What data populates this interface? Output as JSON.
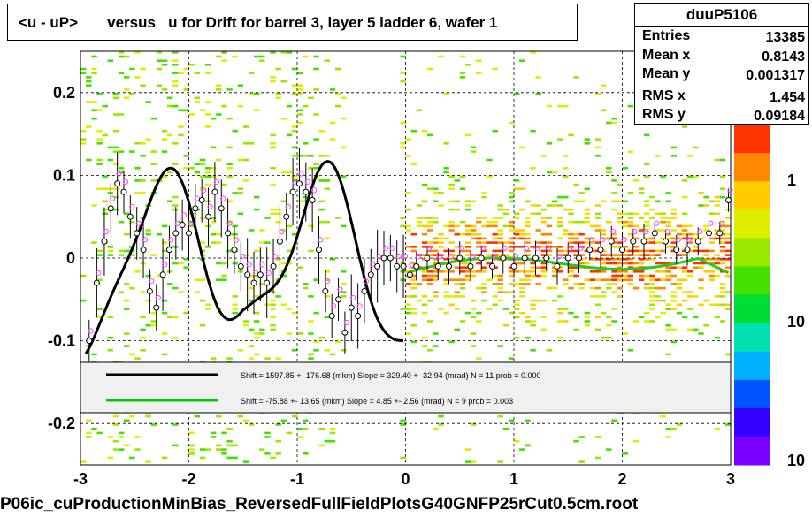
{
  "title": "<u - uP>       versus   u for Drift for barrel 3, layer 5 ladder 6, wafer 1",
  "stats": {
    "name": "duuP5106",
    "rows": [
      {
        "label": "Entries",
        "value": "13385"
      },
      {
        "label": "Mean x",
        "value": "0.8143"
      },
      {
        "label": "Mean y",
        "value": "0.001317"
      },
      {
        "label": "RMS x",
        "value": "1.454"
      },
      {
        "label": "RMS y",
        "value": "0.09184"
      }
    ]
  },
  "footer": "P06ic_cuProductionMinBias_ReversedFullFieldPlotsG40GNFP25rCut0.5cm.root",
  "legend": [
    {
      "text": "Shift =   1597.85 +- 176.68 (mkm) Slope =   329.40 +- 32.94 (mrad)  N = 11 prob = 0.000",
      "color": "#000000"
    },
    {
      "text": "Shift =   -75.88 +- 13.65 (mkm) Slope =     4.85 +- 2.56 (mrad)  N = 9 prob = 0.003",
      "color": "#00cc00"
    }
  ],
  "colors": {
    "fit1": "#000000",
    "fit2": "#22cc22",
    "palette": [
      "#7a00ff",
      "#3300ff",
      "#0055ff",
      "#00b0ff",
      "#00e0b0",
      "#00dd33",
      "#44e000",
      "#99e800",
      "#ddee00",
      "#ffcc00",
      "#ff8800",
      "#ff3300"
    ]
  },
  "chart_data": {
    "type": "heatmap",
    "xlabel": "",
    "ylabel": "",
    "xlim": [
      -3,
      3
    ],
    "ylim": [
      -0.25,
      0.25
    ],
    "xticks": [
      "-3",
      "-2",
      "-1",
      "0",
      "1",
      "2",
      "3"
    ],
    "yticks": [
      "-0.2",
      "-0.1",
      "0",
      "0.1",
      "0.2"
    ],
    "grid": true,
    "colorbar_ticks": [
      "1",
      "10",
      "10"
    ],
    "series": [
      {
        "name": "profile",
        "x": [
          -2.92,
          -2.85,
          -2.78,
          -2.72,
          -2.66,
          -2.6,
          -2.54,
          -2.48,
          -2.42,
          -2.36,
          -2.3,
          -2.24,
          -2.18,
          -2.12,
          -2.06,
          -2.0,
          -1.94,
          -1.88,
          -1.82,
          -1.76,
          -1.7,
          -1.64,
          -1.58,
          -1.52,
          -1.46,
          -1.4,
          -1.34,
          -1.28,
          -1.22,
          -1.16,
          -1.1,
          -1.04,
          -0.98,
          -0.92,
          -0.86,
          -0.8,
          -0.74,
          -0.68,
          -0.62,
          -0.56,
          -0.5,
          -0.44,
          -0.38,
          -0.32,
          -0.26,
          -0.2,
          -0.14,
          -0.08,
          -0.02,
          0.04,
          0.1,
          0.2,
          0.3,
          0.4,
          0.5,
          0.6,
          0.7,
          0.8,
          0.9,
          1.0,
          1.1,
          1.2,
          1.3,
          1.4,
          1.5,
          1.6,
          1.7,
          1.8,
          1.9,
          2.0,
          2.1,
          2.2,
          2.3,
          2.4,
          2.5,
          2.6,
          2.7,
          2.8,
          2.9,
          2.98
        ],
        "y": [
          -0.1,
          -0.03,
          0.02,
          0.06,
          0.09,
          0.08,
          0.05,
          0.03,
          0.01,
          -0.04,
          -0.06,
          -0.02,
          0.01,
          0.03,
          0.04,
          0.03,
          0.06,
          0.07,
          0.05,
          0.08,
          0.06,
          0.03,
          0.01,
          -0.01,
          -0.02,
          -0.03,
          -0.02,
          -0.03,
          -0.01,
          0.02,
          0.05,
          0.08,
          0.09,
          0.08,
          0.07,
          0.01,
          -0.04,
          -0.07,
          -0.05,
          -0.09,
          -0.06,
          -0.07,
          -0.04,
          -0.02,
          -0.01,
          0.0,
          0.0,
          -0.01,
          -0.01,
          -0.02,
          -0.01,
          0.0,
          -0.01,
          -0.01,
          0.0,
          -0.01,
          0.0,
          -0.01,
          0.0,
          -0.01,
          0.0,
          0.0,
          0.0,
          -0.01,
          0.0,
          0.0,
          0.01,
          0.01,
          0.02,
          0.01,
          0.02,
          0.02,
          0.03,
          0.02,
          0.01,
          0.01,
          0.02,
          0.03,
          0.03,
          0.07
        ]
      },
      {
        "name": "fit1",
        "x_range": [
          -3,
          0
        ],
        "shape": "oscillating polynomial"
      },
      {
        "name": "fit2",
        "x_range": [
          0.05,
          2.98
        ],
        "shape": "smooth"
      }
    ]
  }
}
